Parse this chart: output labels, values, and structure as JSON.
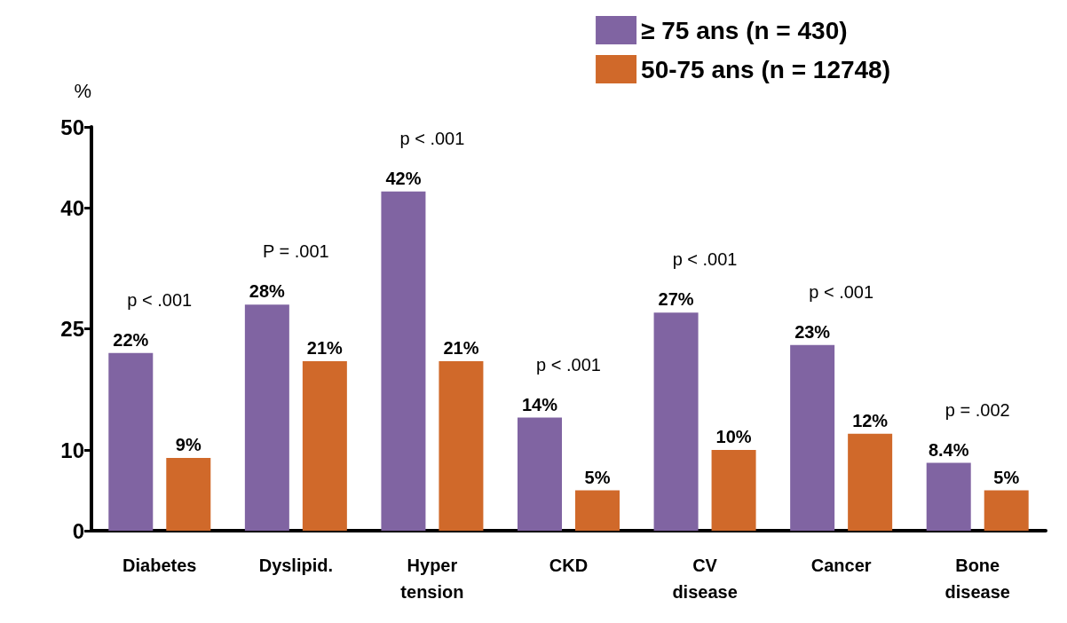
{
  "chart_data": {
    "type": "bar",
    "ylabel": "%",
    "categories": [
      "Diabetes",
      "Dyslipid.",
      "Hyper\ntension",
      "CKD",
      "CV\ndisease",
      "Cancer",
      "Bone\ndisease"
    ],
    "series": [
      {
        "name": "≥ 75 ans (n = 430)",
        "color": "#8064a2",
        "values": [
          22,
          28,
          42,
          14,
          27,
          23,
          8.4
        ],
        "value_labels": [
          "22%",
          "28%",
          "42%",
          "14%",
          "27%",
          "23%",
          "8.4%"
        ]
      },
      {
        "name": "50-75 ans (n = 12748)",
        "color": "#d0692a",
        "values": [
          9,
          21,
          21,
          5,
          10,
          12,
          5
        ],
        "value_labels": [
          "9%",
          "21%",
          "21%",
          "5%",
          "10%",
          "12%",
          "5%"
        ]
      }
    ],
    "ylim": [
      0,
      50
    ],
    "yticks": [
      0,
      10,
      25,
      40,
      50
    ],
    "grid": false,
    "legend": "top right",
    "annotations": [
      "p < .001",
      "P = .001",
      "p < .001",
      "p < .001",
      "p < .001",
      "p < .001",
      "p = .002"
    ]
  }
}
